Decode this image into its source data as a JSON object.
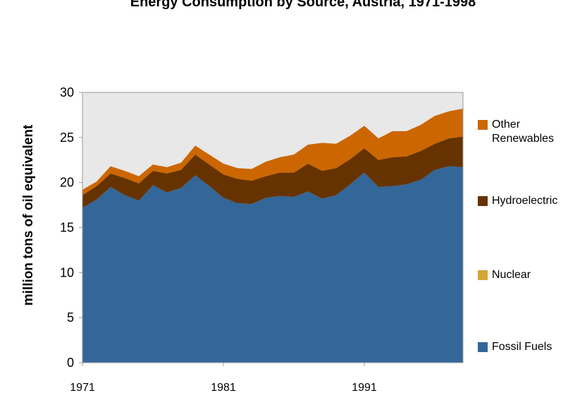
{
  "chart_data": {
    "type": "stacked-area",
    "title": "Energy Consumption by Source, Austria, 1971-1998",
    "y_label": "million tons of oil equivalent",
    "x": [
      1971,
      1972,
      1973,
      1974,
      1975,
      1976,
      1977,
      1978,
      1979,
      1980,
      1981,
      1982,
      1983,
      1984,
      1985,
      1986,
      1987,
      1988,
      1989,
      1990,
      1991,
      1992,
      1993,
      1994,
      1995,
      1996,
      1997,
      1998
    ],
    "xlim": [
      1971,
      1998
    ],
    "xticks": [
      1971,
      1981,
      1991
    ],
    "ylim": [
      0,
      30
    ],
    "yticks": [
      0,
      5,
      10,
      15,
      20,
      25,
      30
    ],
    "series": [
      {
        "name": "Fossil Fuels",
        "color": "#336699",
        "values": [
          17.2,
          18.1,
          19.5,
          18.6,
          18.0,
          19.7,
          18.9,
          19.4,
          20.8,
          19.6,
          18.3,
          17.7,
          17.6,
          18.3,
          18.5,
          18.4,
          19.0,
          18.2,
          18.6,
          19.8,
          21.1,
          19.5,
          19.6,
          19.8,
          20.3,
          21.4,
          21.8,
          21.7
        ]
      },
      {
        "name": "Nuclear",
        "color": "#d4a537",
        "values": [
          0,
          0,
          0,
          0,
          0,
          0,
          0,
          0,
          0,
          0,
          0,
          0,
          0,
          0,
          0,
          0,
          0,
          0,
          0,
          0,
          0,
          0,
          0,
          0,
          0,
          0,
          0,
          0
        ]
      },
      {
        "name": "Hydroelectric",
        "color": "#663300",
        "values": [
          1.4,
          1.5,
          1.5,
          1.9,
          1.9,
          1.6,
          2.1,
          2.0,
          2.3,
          2.4,
          2.6,
          2.7,
          2.6,
          2.4,
          2.6,
          2.7,
          3.1,
          3.1,
          3.0,
          2.8,
          2.7,
          3.0,
          3.2,
          3.1,
          3.2,
          2.9,
          3.1,
          3.4
        ]
      },
      {
        "name": "Other Renewables",
        "color": "#cc6600",
        "values": [
          0.6,
          0.5,
          0.8,
          0.8,
          0.8,
          0.7,
          0.7,
          0.8,
          1.0,
          1.1,
          1.2,
          1.2,
          1.3,
          1.6,
          1.7,
          2.0,
          2.1,
          3.1,
          2.7,
          2.6,
          2.5,
          2.4,
          2.9,
          2.8,
          2.9,
          3.1,
          3.0,
          3.1
        ]
      }
    ]
  }
}
